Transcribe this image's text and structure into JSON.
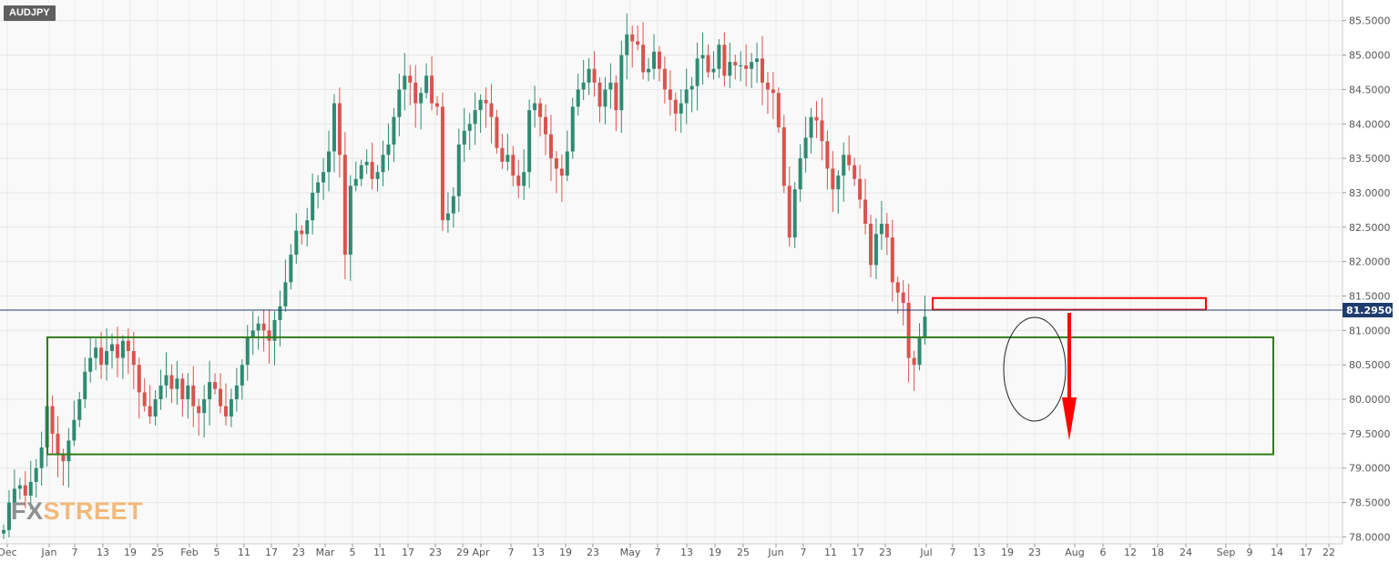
{
  "symbol": "AUDJPY",
  "logo": {
    "part1": "FX",
    "part2": "STREET"
  },
  "colors": {
    "up": "#2e8b71",
    "down": "#d9534f",
    "zone": "#2f7d1a",
    "resist": "#ff0000",
    "arrow": "#ff0000",
    "price_line": "#1f3c6e",
    "price_badge": "#1f3c6e"
  },
  "current_price_label": "81.29500",
  "chart_data": {
    "type": "candlestick",
    "title": "AUDJPY",
    "ylim": [
      77.9,
      85.8
    ],
    "y_ticks": [
      "85.5000",
      "85.0000",
      "84.5000",
      "84.0000",
      "83.5000",
      "83.0000",
      "82.5000",
      "82.0000",
      "81.5000",
      "81.0000",
      "80.5000",
      "80.0000",
      "79.5000",
      "79.0000",
      "78.5000",
      "78.0000"
    ],
    "x_ticks": [
      "Dec",
      "Jan",
      "7",
      "13",
      "19",
      "25",
      "Feb",
      "5",
      "11",
      "17",
      "23",
      "Mar",
      "5",
      "11",
      "17",
      "23",
      "29",
      "Apr",
      "7",
      "13",
      "19",
      "23",
      "May",
      "7",
      "13",
      "19",
      "25",
      "Jun",
      "7",
      "11",
      "17",
      "23",
      "Jul",
      "7",
      "13",
      "19",
      "23",
      "Aug",
      "6",
      "12",
      "18",
      "24",
      "Sep",
      "9",
      "14",
      "17",
      "22"
    ],
    "current_price": 81.295,
    "support_zone": {
      "low": 79.2,
      "high": 80.9
    },
    "resistance_zone": {
      "low": 81.3,
      "high": 81.47
    },
    "closes": [
      78.1,
      78.5,
      78.7,
      78.75,
      78.6,
      78.8,
      79.0,
      79.3,
      79.9,
      79.5,
      79.2,
      79.1,
      79.4,
      79.7,
      80.0,
      80.4,
      80.6,
      80.75,
      80.5,
      80.7,
      80.8,
      80.6,
      80.85,
      80.7,
      80.5,
      80.1,
      79.9,
      79.75,
      80.0,
      80.2,
      80.35,
      80.15,
      80.3,
      80.0,
      80.2,
      79.9,
      79.8,
      80.0,
      80.25,
      80.15,
      79.9,
      79.75,
      80.0,
      80.2,
      80.5,
      80.9,
      81.0,
      81.1,
      81.0,
      80.85,
      81.15,
      81.35,
      81.7,
      82.1,
      82.45,
      82.4,
      82.6,
      83.0,
      83.15,
      83.3,
      83.6,
      84.3,
      83.55,
      82.1,
      83.1,
      83.2,
      83.4,
      83.45,
      83.2,
      83.3,
      83.55,
      83.7,
      84.1,
      84.5,
      84.7,
      84.6,
      84.3,
      84.45,
      84.7,
      84.3,
      84.25,
      82.6,
      82.7,
      82.95,
      83.7,
      83.9,
      84.0,
      84.2,
      84.35,
      84.3,
      84.1,
      83.65,
      83.45,
      83.55,
      83.25,
      83.1,
      83.3,
      84.2,
      84.3,
      84.1,
      83.85,
      83.5,
      83.35,
      83.25,
      83.6,
      84.25,
      84.5,
      84.6,
      84.8,
      84.6,
      84.25,
      84.5,
      84.6,
      84.2,
      85.0,
      85.3,
      85.2,
      85.15,
      84.75,
      84.8,
      85.05,
      84.8,
      84.5,
      84.35,
      84.15,
      84.3,
      84.5,
      84.55,
      84.95,
      85.0,
      84.75,
      84.8,
      85.15,
      84.7,
      84.9,
      84.85,
      84.85,
      84.8,
      84.9,
      84.95,
      84.6,
      84.5,
      84.45,
      83.95,
      83.1,
      82.35,
      83.05,
      83.5,
      83.8,
      84.1,
      84.05,
      83.75,
      83.35,
      83.05,
      83.25,
      83.55,
      83.4,
      83.2,
      82.9,
      82.55,
      81.95,
      82.4,
      82.55,
      82.35,
      81.7,
      81.55,
      81.4,
      80.6,
      80.5,
      80.9,
      81.2
    ]
  }
}
